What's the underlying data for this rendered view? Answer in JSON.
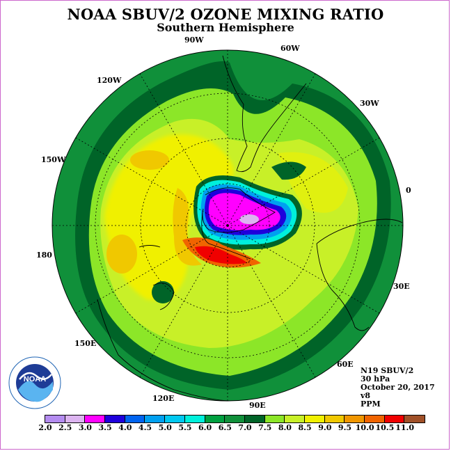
{
  "title": "NOAA SBUV/2 OZONE MIXING RATIO",
  "subtitle": "Southern Hemisphere",
  "longitude_labels": [
    "90W",
    "60W",
    "120W",
    "30W",
    "150W",
    "0",
    "180",
    "30E",
    "150E",
    "60E",
    "120E",
    "90E"
  ],
  "info": {
    "satellite": "N19 SBUV/2",
    "level": "30 hPa",
    "date": "October 20, 2017",
    "version": "v8",
    "units": "PPM"
  },
  "colorbar": {
    "ticks": [
      "2.0",
      "2.5",
      "3.0",
      "3.5",
      "4.0",
      "4.5",
      "5.0",
      "5.5",
      "6.0",
      "6.5",
      "7.0",
      "7.5",
      "8.0",
      "8.5",
      "9.0",
      "9.5",
      "10.0",
      "10.5",
      "11.0"
    ],
    "colors": [
      "#b48cf0",
      "#dcb4f0",
      "#ff00ff",
      "#1e00dc",
      "#0064f0",
      "#00a0f0",
      "#00c8f0",
      "#00f0dc",
      "#00a040",
      "#10903a",
      "#006428",
      "#8ce628",
      "#c8f028",
      "#f0f000",
      "#f0c800",
      "#f09600",
      "#f06400",
      "#f00000",
      "#a05028"
    ]
  },
  "logo_text": "NOAA"
}
